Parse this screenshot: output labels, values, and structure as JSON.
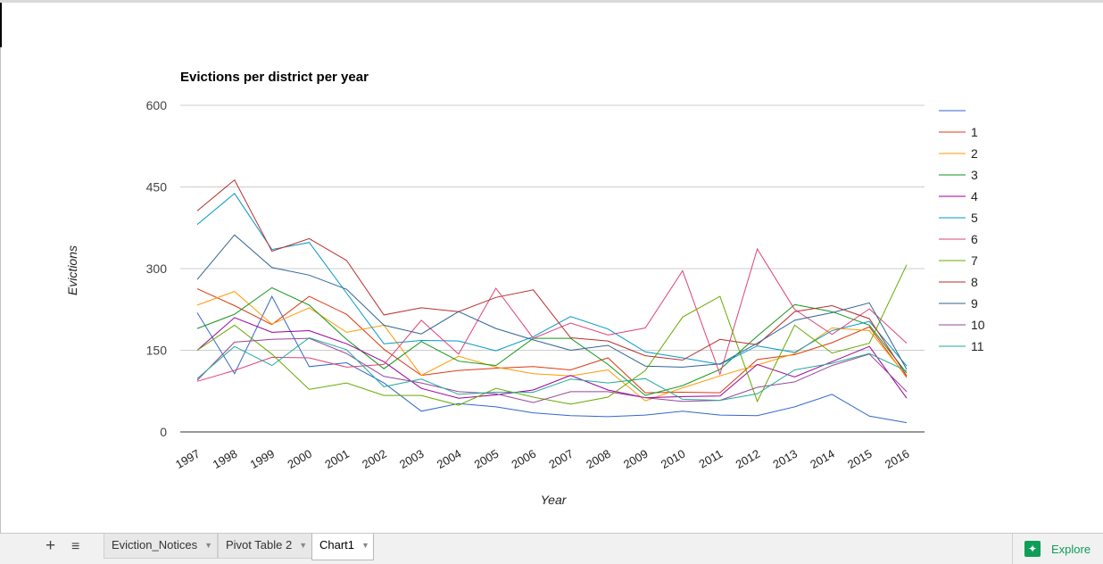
{
  "chart_data": {
    "type": "line",
    "title": "Evictions per district per year",
    "xlabel": "Year",
    "ylabel": "Evictions",
    "ylim": [
      0,
      600
    ],
    "yticks": [
      0,
      150,
      300,
      450,
      600
    ],
    "grid": true,
    "legend_position": "right",
    "categories": [
      "1997",
      "1998",
      "1999",
      "2000",
      "2001",
      "2002",
      "2003",
      "2004",
      "2005",
      "2006",
      "2007",
      "2008",
      "2009",
      "2010",
      "2011",
      "2012",
      "2013",
      "2014",
      "2015",
      "2016"
    ],
    "series": [
      {
        "name": "",
        "color": "#3366cc",
        "values": [
          219,
          107,
          249,
          120,
          127,
          90,
          38,
          52,
          46,
          35,
          30,
          28,
          31,
          38,
          31,
          30,
          46,
          69,
          29,
          17
        ]
      },
      {
        "name": "1",
        "color": "#dc3912",
        "values": [
          263,
          232,
          197,
          249,
          216,
          152,
          104,
          113,
          117,
          120,
          114,
          136,
          72,
          73,
          72,
          133,
          142,
          164,
          193,
          100
        ]
      },
      {
        "name": "2",
        "color": "#ff9900",
        "values": [
          233,
          258,
          198,
          228,
          183,
          196,
          104,
          139,
          119,
          107,
          103,
          114,
          57,
          81,
          103,
          123,
          144,
          191,
          186,
          102
        ]
      },
      {
        "name": "3",
        "color": "#109618",
        "values": [
          190,
          216,
          265,
          233,
          170,
          116,
          166,
          130,
          122,
          172,
          172,
          124,
          67,
          85,
          115,
          176,
          234,
          221,
          196,
          108
        ]
      },
      {
        "name": "4",
        "color": "#990099",
        "values": [
          150,
          210,
          183,
          186,
          162,
          129,
          80,
          62,
          68,
          77,
          104,
          77,
          63,
          65,
          66,
          124,
          101,
          129,
          157,
          62
        ]
      },
      {
        "name": "5",
        "color": "#0099c6",
        "values": [
          381,
          438,
          335,
          348,
          255,
          162,
          168,
          167,
          149,
          175,
          212,
          189,
          147,
          136,
          124,
          158,
          146,
          186,
          203,
          121
        ]
      },
      {
        "name": "6",
        "color": "#dd4477",
        "values": [
          93,
          113,
          137,
          136,
          119,
          124,
          205,
          143,
          264,
          172,
          200,
          178,
          191,
          296,
          106,
          336,
          225,
          179,
          226,
          163
        ]
      },
      {
        "name": "7",
        "color": "#66aa00",
        "values": [
          150,
          196,
          143,
          78,
          90,
          67,
          67,
          49,
          80,
          64,
          51,
          64,
          113,
          211,
          249,
          56,
          196,
          145,
          163,
          307
        ]
      },
      {
        "name": "8",
        "color": "#b82e2e",
        "values": [
          406,
          463,
          332,
          355,
          315,
          215,
          228,
          221,
          247,
          261,
          173,
          167,
          140,
          132,
          170,
          160,
          221,
          232,
          208,
          103
        ]
      },
      {
        "name": "9",
        "color": "#316395",
        "values": [
          280,
          362,
          302,
          288,
          262,
          196,
          180,
          221,
          190,
          169,
          150,
          159,
          121,
          119,
          125,
          163,
          205,
          219,
          237,
          115
        ]
      },
      {
        "name": "10",
        "color": "#994499",
        "values": [
          95,
          165,
          170,
          172,
          144,
          102,
          90,
          74,
          70,
          54,
          74,
          74,
          63,
          56,
          58,
          82,
          92,
          122,
          143,
          74
        ]
      },
      {
        "name": "11",
        "color": "#22aa99",
        "values": [
          98,
          157,
          122,
          173,
          151,
          83,
          97,
          69,
          73,
          73,
          97,
          90,
          98,
          60,
          58,
          70,
          114,
          126,
          144,
          112
        ]
      }
    ]
  },
  "sheet_bar": {
    "add_sheet": "+",
    "all_sheets": "≡",
    "tabs": [
      {
        "label": "Eviction_Notices",
        "active": false
      },
      {
        "label": "Pivot Table 2",
        "active": false
      },
      {
        "label": "Chart1",
        "active": true
      }
    ],
    "explore_label": "Explore"
  }
}
